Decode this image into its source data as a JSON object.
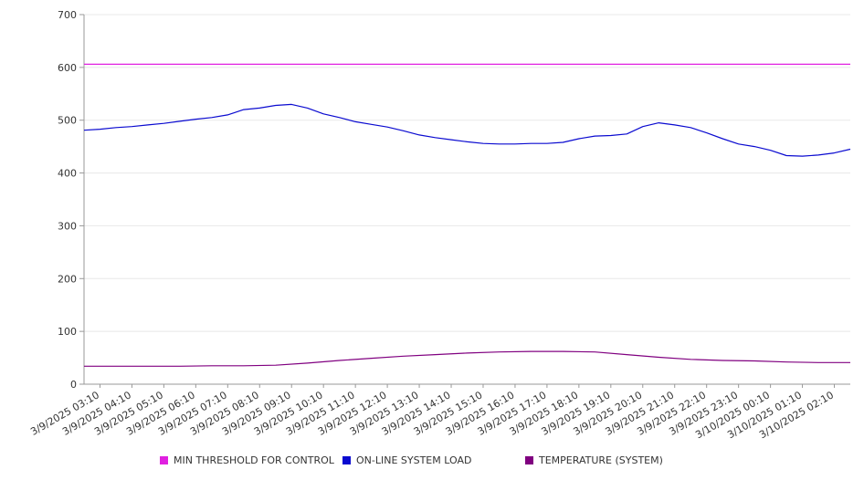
{
  "chart_data": {
    "type": "line",
    "title": "",
    "xlabel": "",
    "ylabel": "",
    "ylim": [
      0,
      700
    ],
    "y_ticks": [
      0,
      100,
      200,
      300,
      400,
      500,
      600,
      700
    ],
    "grid": true,
    "legend_position": "bottom",
    "x_labels": [
      "3/9/2025 03:10",
      "3/9/2025 04:10",
      "3/9/2025 05:10",
      "3/9/2025 06:10",
      "3/9/2025 07:10",
      "3/9/2025 08:10",
      "3/9/2025 09:10",
      "3/9/2025 10:10",
      "3/9/2025 11:10",
      "3/9/2025 12:10",
      "3/9/2025 13:10",
      "3/9/2025 14:10",
      "3/9/2025 15:10",
      "3/9/2025 16:10",
      "3/9/2025 17:10",
      "3/9/2025 18:10",
      "3/9/2025 19:10",
      "3/9/2025 20:10",
      "3/9/2025 21:10",
      "3/9/2025 22:10",
      "3/9/2025 23:10",
      "3/10/2025 00:10",
      "3/10/2025 01:10",
      "3/10/2025 02:10"
    ],
    "x_start": "3/9/2025 02:40",
    "x_end": "3/10/2025 02:40",
    "series": [
      {
        "name": "MIN THRESHOLD FOR CONTROL",
        "color": "#e020e0",
        "times": [
          "3/9/2025 02:40",
          "3/10/2025 02:40"
        ],
        "values": [
          606,
          606
        ]
      },
      {
        "name": "ON-LINE SYSTEM LOAD",
        "color": "#0a0ad0",
        "times": [
          "3/9/2025 02:40",
          "3/9/2025 03:10",
          "3/9/2025 03:40",
          "3/9/2025 04:10",
          "3/9/2025 04:40",
          "3/9/2025 05:10",
          "3/9/2025 05:40",
          "3/9/2025 06:10",
          "3/9/2025 06:40",
          "3/9/2025 07:10",
          "3/9/2025 07:40",
          "3/9/2025 08:10",
          "3/9/2025 08:40",
          "3/9/2025 09:10",
          "3/9/2025 09:40",
          "3/9/2025 10:10",
          "3/9/2025 10:40",
          "3/9/2025 11:10",
          "3/9/2025 11:40",
          "3/9/2025 12:10",
          "3/9/2025 12:40",
          "3/9/2025 13:10",
          "3/9/2025 13:40",
          "3/9/2025 14:10",
          "3/9/2025 14:40",
          "3/9/2025 15:10",
          "3/9/2025 15:40",
          "3/9/2025 16:10",
          "3/9/2025 16:40",
          "3/9/2025 17:10",
          "3/9/2025 17:40",
          "3/9/2025 18:10",
          "3/9/2025 18:40",
          "3/9/2025 19:10",
          "3/9/2025 19:40",
          "3/9/2025 20:10",
          "3/9/2025 20:40",
          "3/9/2025 21:10",
          "3/9/2025 21:40",
          "3/9/2025 22:10",
          "3/9/2025 22:40",
          "3/9/2025 23:10",
          "3/9/2025 23:40",
          "3/10/2025 00:10",
          "3/10/2025 00:40",
          "3/10/2025 01:10",
          "3/10/2025 01:40",
          "3/10/2025 02:10",
          "3/10/2025 02:40"
        ],
        "values": [
          481,
          483,
          486,
          488,
          491,
          494,
          498,
          502,
          505,
          510,
          520,
          523,
          528,
          530,
          523,
          512,
          505,
          497,
          492,
          487,
          480,
          472,
          467,
          463,
          459,
          456,
          455,
          455,
          456,
          456,
          458,
          465,
          470,
          471,
          474,
          488,
          495,
          491,
          486,
          476,
          465,
          455,
          450,
          443,
          433,
          432,
          434,
          438,
          445
        ]
      },
      {
        "name": "TEMPERATURE (SYSTEM)",
        "color": "#800080",
        "times": [
          "3/9/2025 02:40",
          "3/9/2025 03:40",
          "3/9/2025 04:40",
          "3/9/2025 05:40",
          "3/9/2025 06:40",
          "3/9/2025 07:40",
          "3/9/2025 08:40",
          "3/9/2025 09:40",
          "3/9/2025 10:40",
          "3/9/2025 11:40",
          "3/9/2025 12:40",
          "3/9/2025 13:40",
          "3/9/2025 14:40",
          "3/9/2025 15:40",
          "3/9/2025 16:40",
          "3/9/2025 17:40",
          "3/9/2025 18:40",
          "3/9/2025 19:40",
          "3/9/2025 20:40",
          "3/9/2025 21:40",
          "3/9/2025 22:40",
          "3/9/2025 23:40",
          "3/10/2025 00:40",
          "3/10/2025 01:40",
          "3/10/2025 02:40"
        ],
        "values": [
          34,
          34,
          34,
          34,
          35,
          35,
          36,
          40,
          45,
          49,
          53,
          56,
          59,
          61,
          62,
          62,
          61,
          56,
          51,
          47,
          45,
          44,
          42,
          41,
          41
        ]
      }
    ]
  }
}
